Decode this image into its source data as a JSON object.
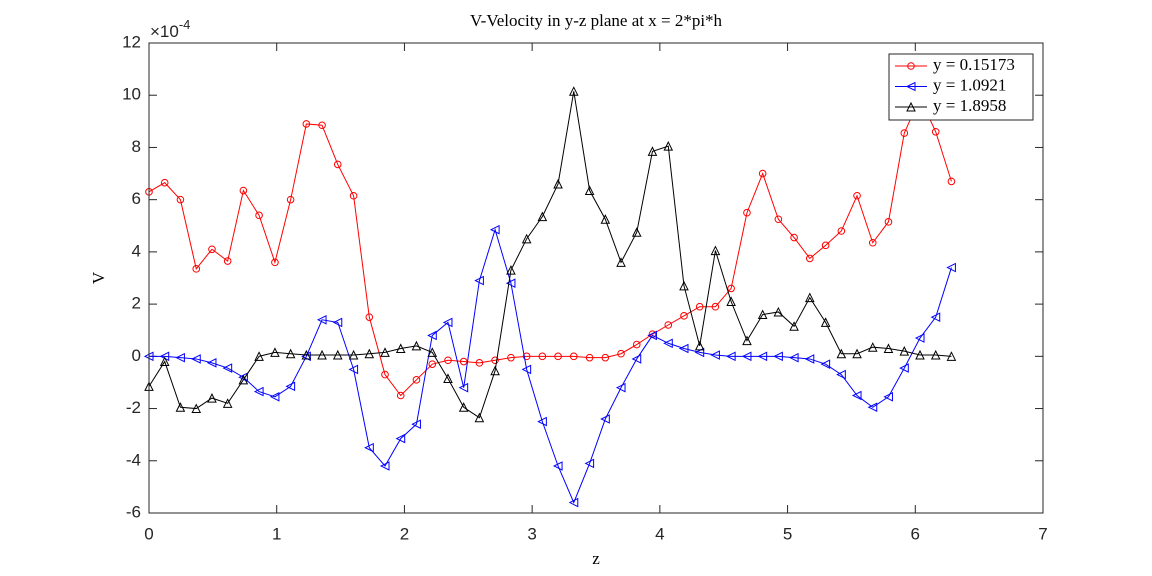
{
  "chart_data": {
    "type": "line",
    "title": "V-Velocity in y-z plane at x = 2*pi*h",
    "x_label": "z",
    "y_label": "V",
    "y_exponent": {
      "base": "×10",
      "exponent": "-4"
    },
    "xlim": [
      0,
      7
    ],
    "ylim": [
      -6,
      12
    ],
    "xticks": [
      0,
      1,
      2,
      3,
      4,
      5,
      6,
      7
    ],
    "yticks": [
      -6,
      -4,
      -2,
      0,
      2,
      4,
      6,
      8,
      10,
      12
    ],
    "legend_position": "top-right",
    "x": [
      0,
      0.123,
      0.246,
      0.37,
      0.493,
      0.616,
      0.739,
      0.862,
      0.986,
      1.109,
      1.232,
      1.355,
      1.478,
      1.602,
      1.725,
      1.848,
      1.971,
      2.094,
      2.218,
      2.341,
      2.464,
      2.587,
      2.71,
      2.834,
      2.957,
      3.08,
      3.203,
      3.326,
      3.45,
      3.573,
      3.696,
      3.819,
      3.942,
      4.066,
      4.189,
      4.312,
      4.435,
      4.558,
      4.682,
      4.805,
      4.928,
      5.051,
      5.174,
      5.298,
      5.421,
      5.544,
      5.667,
      5.79,
      5.914,
      6.037,
      6.16,
      6.283
    ],
    "series": [
      {
        "name": "y = 0.15173",
        "color": "#ff0000",
        "marker": "circle",
        "values": [
          6.3,
          6.65,
          6.0,
          3.35,
          4.1,
          3.65,
          6.35,
          5.4,
          3.6,
          6.0,
          8.9,
          8.85,
          7.35,
          6.15,
          1.5,
          -0.7,
          -1.5,
          -0.9,
          -0.3,
          -0.15,
          -0.2,
          -0.25,
          -0.15,
          -0.05,
          0.0,
          0.0,
          0.0,
          0.0,
          -0.05,
          -0.05,
          0.1,
          0.45,
          0.85,
          1.2,
          1.55,
          1.9,
          1.9,
          2.6,
          5.5,
          7.0,
          5.25,
          4.55,
          3.75,
          4.25,
          4.8,
          6.15,
          4.35,
          5.15,
          8.55,
          9.9,
          8.6,
          6.7
        ]
      },
      {
        "name": "y = 1.0921",
        "color": "#0000ff",
        "marker": "triangle-left",
        "values": [
          0.0,
          0.0,
          -0.05,
          -0.1,
          -0.25,
          -0.45,
          -0.8,
          -1.35,
          -1.55,
          -1.15,
          0.0,
          1.4,
          1.3,
          -0.5,
          -3.5,
          -4.2,
          -3.15,
          -2.6,
          0.8,
          1.3,
          -1.2,
          2.9,
          4.85,
          2.8,
          -0.5,
          -2.5,
          -4.2,
          -5.6,
          -4.1,
          -2.4,
          -1.2,
          -0.1,
          0.8,
          0.5,
          0.3,
          0.15,
          0.05,
          0.0,
          0.0,
          0.0,
          0.0,
          -0.05,
          -0.1,
          -0.3,
          -0.7,
          -1.5,
          -1.95,
          -1.55,
          -0.45,
          0.7,
          1.5,
          3.4
        ]
      },
      {
        "name": "y = 1.8958",
        "color": "#000000",
        "marker": "triangle-up",
        "values": [
          -1.15,
          -0.2,
          -1.95,
          -2.0,
          -1.6,
          -1.8,
          -0.9,
          0.0,
          0.15,
          0.1,
          0.05,
          0.05,
          0.05,
          0.05,
          0.1,
          0.15,
          0.3,
          0.4,
          0.15,
          -0.85,
          -1.95,
          -2.35,
          -0.55,
          3.3,
          4.5,
          5.35,
          6.6,
          10.15,
          6.35,
          5.25,
          3.6,
          4.75,
          7.85,
          8.05,
          2.7,
          0.4,
          4.05,
          2.1,
          0.6,
          1.6,
          1.7,
          1.15,
          2.25,
          1.3,
          0.1,
          0.1,
          0.35,
          0.3,
          0.2,
          0.05,
          0.05,
          0.0
        ]
      }
    ]
  }
}
